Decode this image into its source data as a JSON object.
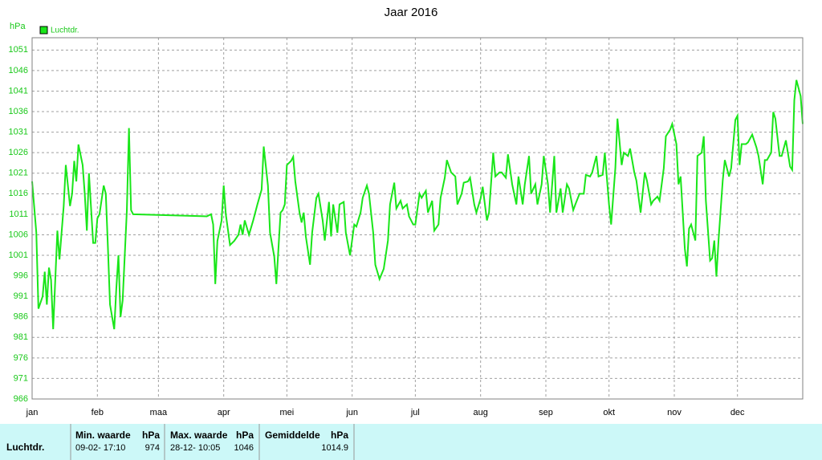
{
  "chart_data": {
    "type": "line",
    "title": "Jaar 2016",
    "ylabel": "hPa",
    "legend": "top-left",
    "grid": true,
    "xlim": [
      0,
      366
    ],
    "ylim": [
      966,
      1054
    ],
    "xticks": [
      {
        "value": 0,
        "label": "jan"
      },
      {
        "value": 31,
        "label": "feb"
      },
      {
        "value": 60,
        "label": "maa"
      },
      {
        "value": 91,
        "label": "apr"
      },
      {
        "value": 121,
        "label": "mei"
      },
      {
        "value": 152,
        "label": "jun"
      },
      {
        "value": 182,
        "label": "jul"
      },
      {
        "value": 213,
        "label": "aug"
      },
      {
        "value": 244,
        "label": "sep"
      },
      {
        "value": 274,
        "label": "okt"
      },
      {
        "value": 305,
        "label": "nov"
      },
      {
        "value": 335,
        "label": "dec"
      }
    ],
    "yticks": [
      966,
      971,
      976,
      981,
      986,
      991,
      996,
      1001,
      1006,
      1011,
      1016,
      1021,
      1026,
      1031,
      1036,
      1041,
      1046,
      1051
    ],
    "x": [
      0,
      2,
      3,
      5,
      6,
      7,
      8,
      9,
      10,
      11,
      12,
      13,
      15,
      16,
      18,
      19,
      20,
      21,
      22,
      24,
      25,
      26,
      27,
      29,
      30,
      31,
      32,
      34,
      35,
      36,
      37,
      39,
      40,
      41,
      42,
      43,
      45,
      46,
      47,
      48,
      83,
      85,
      86,
      87,
      88,
      90,
      91,
      92,
      94,
      95,
      96,
      98,
      99,
      100,
      101,
      103,
      105,
      107,
      109,
      110,
      112,
      113,
      115,
      116,
      118,
      119,
      120,
      121,
      123,
      124,
      125,
      127,
      128,
      129,
      130,
      132,
      133,
      135,
      136,
      138,
      139,
      141,
      142,
      143,
      145,
      146,
      148,
      149,
      151,
      153,
      154,
      156,
      157,
      159,
      160,
      162,
      163,
      165,
      167,
      169,
      170,
      172,
      173,
      175,
      176,
      178,
      179,
      181,
      182,
      184,
      185,
      187,
      188,
      190,
      191,
      193,
      194,
      196,
      197,
      199,
      201,
      202,
      204,
      205,
      207,
      208,
      210,
      211,
      213,
      214,
      216,
      217,
      219,
      220,
      222,
      223,
      225,
      226,
      228,
      230,
      231,
      233,
      234,
      236,
      237,
      239,
      240,
      242,
      243,
      245,
      246,
      248,
      249,
      251,
      252,
      254,
      255,
      257,
      258,
      260,
      262,
      263,
      265,
      266,
      268,
      269,
      271,
      272,
      274,
      275,
      277,
      278,
      280,
      281,
      283,
      284,
      286,
      287,
      289,
      291,
      292,
      294,
      295,
      297,
      298,
      300,
      301,
      303,
      304,
      306,
      307,
      308,
      310,
      311,
      312,
      313,
      315,
      316,
      318,
      319,
      320,
      322,
      323,
      324,
      325,
      326,
      328,
      329,
      331,
      332,
      334,
      335,
      336,
      337,
      339,
      340,
      342,
      344,
      345,
      347,
      348,
      349,
      351,
      352,
      353,
      355,
      356,
      358,
      360,
      361,
      362,
      363,
      365,
      366
    ],
    "series": [
      {
        "name": "Luchtdr.",
        "color": "#19e619",
        "values": [
          1019,
          1006.5,
          988,
          991,
          997,
          989,
          998,
          995,
          983,
          995,
          1007,
          1000,
          1013,
          1023,
          1013,
          1016,
          1024,
          1019,
          1028,
          1023,
          1016,
          1007,
          1021,
          1004,
          1004,
          1010,
          1011,
          1018,
          1016,
          1003,
          989,
          983,
          993,
          1001,
          986,
          990,
          1012,
          1032,
          1012,
          1011,
          1010.5,
          1011,
          1008.5,
          994,
          1004.5,
          1009.5,
          1018,
          1011,
          1003.5,
          1004,
          1004.5,
          1006,
          1008.5,
          1006,
          1009.5,
          1006,
          1009.5,
          1013.4,
          1017,
          1027.5,
          1018,
          1006.5,
          1000.7,
          994,
          1011.4,
          1012,
          1013.4,
          1023,
          1024,
          1025,
          1019,
          1011.4,
          1009,
          1011.4,
          1005.6,
          998.7,
          1006.5,
          1015,
          1016,
          1009.5,
          1004.6,
          1014,
          1005.6,
          1013.4,
          1006.5,
          1013.4,
          1014,
          1006.5,
          1001,
          1008.5,
          1008,
          1011.4,
          1015,
          1018,
          1016,
          1006.5,
          998.7,
          995.2,
          997.7,
          1004.6,
          1013.4,
          1018.7,
          1012.4,
          1014.3,
          1012.4,
          1013.4,
          1010.5,
          1008.5,
          1008.5,
          1016,
          1015,
          1016.7,
          1011.4,
          1014.3,
          1007,
          1008.5,
          1015,
          1019.9,
          1024.2,
          1021.2,
          1020.2,
          1013.4,
          1016,
          1018.7,
          1019,
          1019.9,
          1013.4,
          1011.4,
          1014.8,
          1017.7,
          1009.5,
          1011.4,
          1026,
          1020.2,
          1021.2,
          1021.2,
          1019.9,
          1025.6,
          1018.3,
          1013.4,
          1020.2,
          1013.4,
          1018.3,
          1025.2,
          1016,
          1018.3,
          1013.4,
          1018.3,
          1025.2,
          1018.3,
          1011.4,
          1025.2,
          1011.4,
          1017.3,
          1011.4,
          1018.3,
          1017.3,
          1012,
          1013.4,
          1016,
          1016,
          1020.6,
          1020.2,
          1021.2,
          1025.2,
          1020.2,
          1020.6,
          1026,
          1013.4,
          1008.5,
          1022.2,
          1034.3,
          1023,
          1026,
          1025.2,
          1027,
          1021.2,
          1019.2,
          1011.4,
          1021.2,
          1019.2,
          1013.4,
          1014.3,
          1015.3,
          1014.3,
          1022.2,
          1030,
          1031.6,
          1033,
          1028.1,
          1018.3,
          1020.2,
          1002.6,
          998.3,
          1007.5,
          1008.5,
          1004.6,
          1025.2,
          1026,
          1030,
          1014.3,
          999.7,
          1000.3,
          1004.6,
          995.8,
          1004.6,
          1019.2,
          1024.2,
          1020.2,
          1022.2,
          1034,
          1035,
          1023,
          1028.1,
          1028.1,
          1028.5,
          1030.4,
          1027.3,
          1025.2,
          1018.3,
          1024.2,
          1024.2,
          1026,
          1035.9,
          1034.3,
          1025.2,
          1025.2,
          1029,
          1022.6,
          1021.8,
          1038.8,
          1043.7,
          1039.8,
          1033
        ]
      }
    ]
  },
  "table": {
    "columns": [
      "Min. waarde",
      "hPa",
      "Max. waarde",
      "hPa",
      "Gemiddelde",
      "hPa"
    ],
    "rows": [
      {
        "label": "Luchtdr.",
        "cells": [
          "09-02- 17:10",
          974,
          "28-12- 10:05",
          1046,
          1014.9
        ]
      }
    ]
  }
}
